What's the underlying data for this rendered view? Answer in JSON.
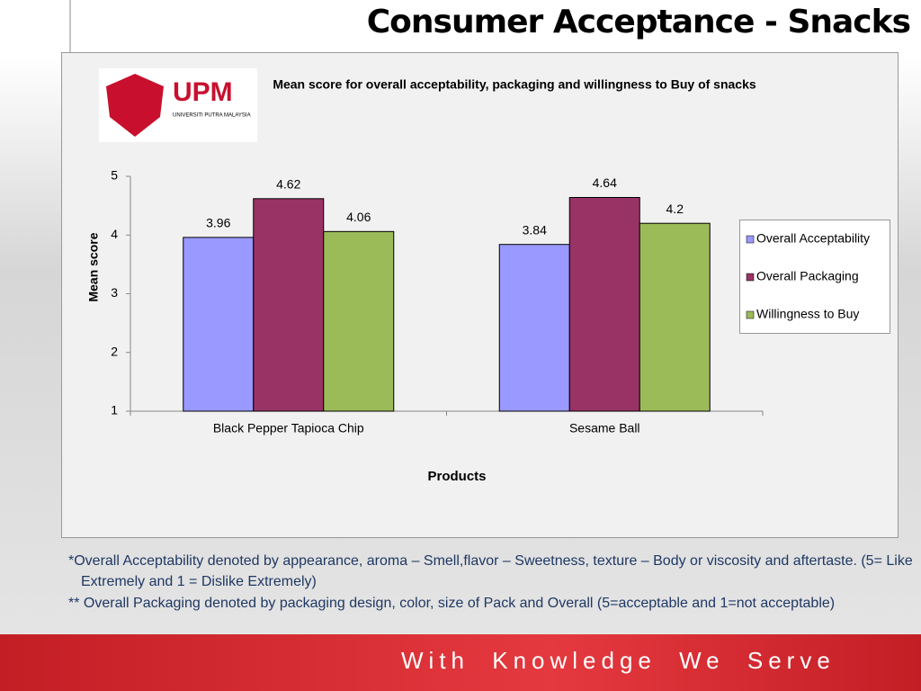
{
  "slide_title": "Consumer Acceptance - Snacks",
  "logo": {
    "name": "UPM",
    "university": "UNIVERSITI PUTRA MALAYSIA"
  },
  "chart_data": {
    "type": "bar",
    "title": "Mean score for overall acceptability, packaging and willingness to Buy of snacks",
    "x_label": "Products",
    "y_label": "Mean score",
    "categories": [
      "Black Pepper Tapioca Chip",
      "Sesame Ball"
    ],
    "series": [
      {
        "name": "Overall Acceptability",
        "color": "#9999ff",
        "values": [
          3.96,
          3.84
        ]
      },
      {
        "name": "Overall Packaging",
        "color": "#993366",
        "values": [
          4.62,
          4.64
        ]
      },
      {
        "name": "Willingness to Buy",
        "color": "#9bbb59",
        "values": [
          4.06,
          4.2
        ]
      }
    ],
    "ylim": [
      1,
      5
    ],
    "yticks": [
      1,
      2,
      3,
      4,
      5
    ],
    "grid": false,
    "legend": "right"
  },
  "notes": [
    "*Overall Acceptability  denoted by  appearance, aroma – Smell,flavor – Sweetness, texture – Body or viscosity and aftertaste. (5= Like Extremely and 1 = Dislike Extremely)",
    "** Overall Packaging denoted by packaging design, color, size of Pack and Overall (5=acceptable and 1=not acceptable)"
  ],
  "footer": "With Knowledge We Serve"
}
